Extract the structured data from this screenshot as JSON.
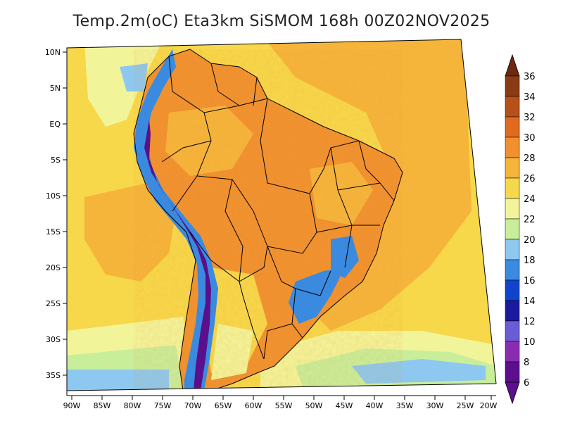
{
  "title": "Temp.2m(oC) Eta3km SiSMOM 168h 00Z02NOV2025",
  "lat_labels": [
    "10N",
    "5N",
    "EQ",
    "5S",
    "10S",
    "15S",
    "20S",
    "25S",
    "30S",
    "35S"
  ],
  "lon_labels": [
    "90W",
    "85W",
    "80W",
    "75W",
    "70W",
    "65W",
    "60W",
    "55W",
    "50W",
    "45W",
    "40W",
    "35W",
    "30W",
    "25W",
    "20W"
  ],
  "colorbar": {
    "labels": [
      "36",
      "34",
      "32",
      "30",
      "28",
      "26",
      "24",
      "22",
      "20",
      "18",
      "16",
      "14",
      "12",
      "10",
      "8",
      "6"
    ],
    "colors": {
      "c6_8": "#5b0f8c",
      "c8_10": "#8a2cb0",
      "c10_12": "#6a5bd6",
      "c12_14": "#1a1aa0",
      "c14_16": "#1144cc",
      "c16_18": "#3a8ae0",
      "c18_20": "#8cc8f0",
      "c20_22": "#c8ee9a",
      "c22_24": "#f2f49a",
      "c24_26": "#f7d84a",
      "c26_28": "#f5b43a",
      "c28_30": "#f0902e",
      "c30_32": "#e06a1e",
      "c32_34": "#b8501a",
      "c34_36": "#8a3a14",
      "over": "#6b2a10"
    }
  },
  "palette": {
    "ocean_warm": "#f5b43a",
    "ocean_mild": "#f7d84a",
    "ocean_cool": "#f2f49a",
    "ocean_cold": "#c8ee9a",
    "ocean_south": "#8cc8f0",
    "land_hot": "#f0902e",
    "land_warm": "#f5b43a",
    "andes": "#5b0f8c",
    "andes_mid": "#3a8ae0",
    "border_line": "#000000"
  }
}
